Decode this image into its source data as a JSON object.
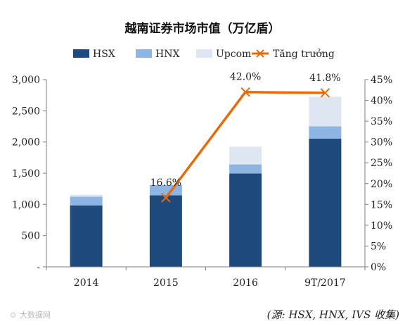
{
  "chart_data": {
    "type": "bar",
    "title": "越南证券市场市值（万亿盾）",
    "categories": [
      "2014",
      "2015",
      "2016",
      "9T/2017"
    ],
    "series": [
      {
        "name": "HSX",
        "kind": "stacked-bar",
        "axis": "left",
        "color": "#1f4a7d",
        "values": [
          985,
          1145,
          1495,
          2055
        ]
      },
      {
        "name": "HNX",
        "kind": "stacked-bar",
        "axis": "left",
        "color": "#8db4e2",
        "values": [
          140,
          165,
          145,
          195
        ]
      },
      {
        "name": "Upcom",
        "kind": "stacked-bar",
        "axis": "left",
        "color": "#dde6f1",
        "values": [
          30,
          0,
          285,
          475
        ]
      },
      {
        "name": "Tăng trưởng",
        "kind": "line",
        "axis": "right",
        "color": "#e46c0a",
        "marker": "x",
        "points": [
          {
            "category": "2015",
            "value": 16.6,
            "label": "16.6%"
          },
          {
            "category": "2016",
            "value": 42.0,
            "label": "42.0%"
          },
          {
            "category": "9T/2017",
            "value": 41.8,
            "label": "41.8%"
          }
        ]
      }
    ],
    "y_left": {
      "ylim": [
        0,
        3000
      ],
      "ticks": [
        "-",
        "500",
        "1,000",
        "1,500",
        "2,000",
        "2,500",
        "3,000"
      ]
    },
    "y_right": {
      "ylim": [
        0,
        45
      ],
      "ticks": [
        "0%",
        "5%",
        "10%",
        "15%",
        "20%",
        "25%",
        "30%",
        "35%",
        "40%",
        "45%"
      ]
    },
    "legend": {
      "position": "top",
      "items": [
        "HSX",
        "HNX",
        "Upcom",
        "Tăng trưởng"
      ]
    },
    "grid": false
  },
  "source_note": "(源: HSX, HNX, IVS 收集)",
  "watermark": "大数据网"
}
